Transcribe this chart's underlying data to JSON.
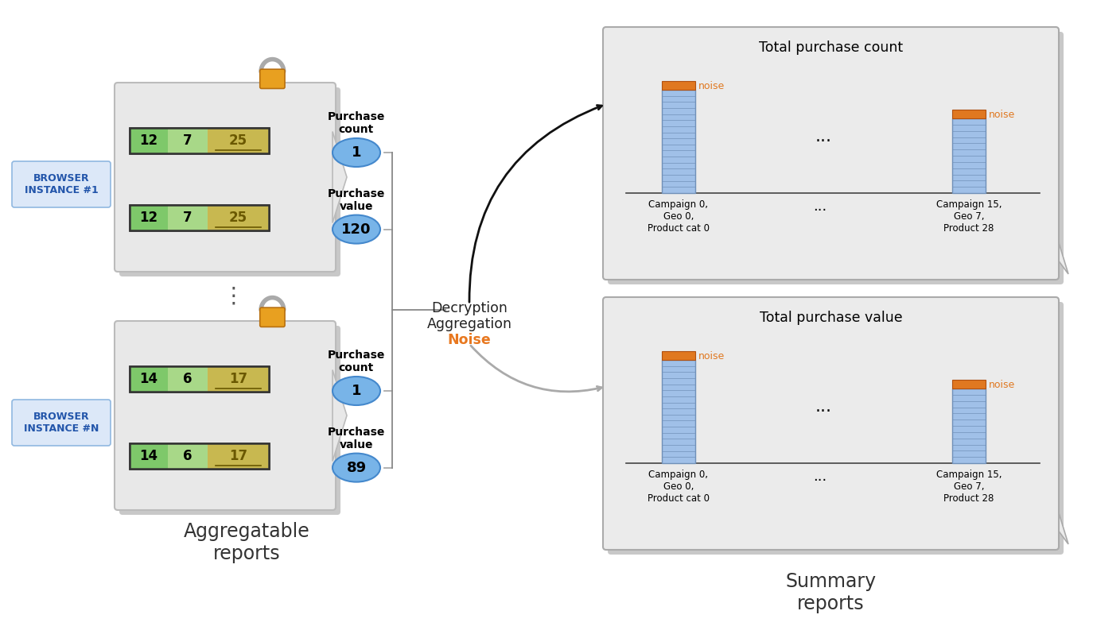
{
  "bg_color": "#ffffff",
  "browser1_label": "BROWSER\nINSTANCE #1",
  "browserN_label": "BROWSER\nINSTANCE #N",
  "browser_box_color": "#dce8f8",
  "browser_border_color": "#90b8e0",
  "report_bg": "#e8e8e8",
  "report_shadow_color": "#c8c8c8",
  "row1_values": [
    "12",
    "7",
    "25"
  ],
  "row2_values": [
    "12",
    "7",
    "25"
  ],
  "rowN1_values": [
    "14",
    "6",
    "17"
  ],
  "rowN2_values": [
    "14",
    "6",
    "17"
  ],
  "cell_green1": "#7ec86a",
  "cell_green2": "#a8d888",
  "cell_yellow": "#c8b850",
  "purchase_count1": "1",
  "purchase_value1": "120",
  "purchase_countN": "1",
  "purchase_valueN": "89",
  "bubble_color": "#78b4e8",
  "bubble_border": "#4488cc",
  "lock_body_color": "#e8a020",
  "lock_border_color": "#b87010",
  "lock_shackle_color": "#aaaaaa",
  "middle_text_black": [
    "Decryption",
    "Aggregation"
  ],
  "middle_text_orange": "Noise",
  "middle_text_orange_color": "#e87820",
  "summary1_title": "Total purchase count",
  "summary2_title": "Total purchase value",
  "summary_bg": "#ebebeb",
  "summary_border": "#aaaaaa",
  "bar_blue": "#a0c0e8",
  "bar_blue_line": "#7090b8",
  "bar_orange": "#e07820",
  "noise_label": "noise",
  "noise_color": "#e07820",
  "bar1_label1": "Campaign 0,\nGeo 0,\nProduct cat 0",
  "bar1_label2": "Campaign 15,\nGeo 7,\nProduct 28",
  "dots": "...",
  "summary_reports_label": "Summary\nreports",
  "aggregatable_reports_label": "Aggregatable\nreports",
  "arrow1_color": "#111111",
  "arrow2_color": "#aaaaaa",
  "line_color": "#aaaaaa",
  "merge_line_color": "#888888"
}
